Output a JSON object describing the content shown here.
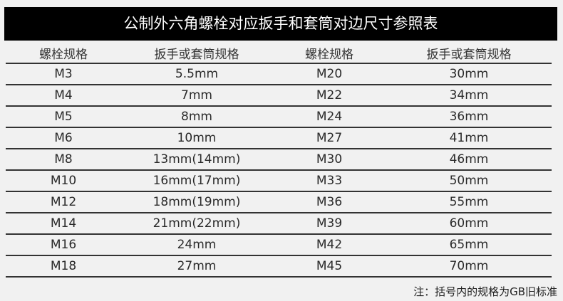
{
  "title": "公制外六角螺栓对应扳手和套筒对边尺寸参照表",
  "headers": [
    "螺栓规格",
    "扳手或套筒规格",
    "螺栓规格",
    "扳手或套筒规格"
  ],
  "rows": [
    [
      "M3",
      "5.5mm",
      "M20",
      "30mm"
    ],
    [
      "M4",
      "7mm",
      "M22",
      "34mm"
    ],
    [
      "M5",
      "8mm",
      "M24",
      "36mm"
    ],
    [
      "M6",
      "10mm",
      "M27",
      "41mm"
    ],
    [
      "M8",
      "13mm(14mm)",
      "M30",
      "46mm"
    ],
    [
      "M10",
      "16mm(17mm)",
      "M33",
      "50mm"
    ],
    [
      "M12",
      "18mm(19mm)",
      "M36",
      "55mm"
    ],
    [
      "M14",
      "21mm(22mm)",
      "M39",
      "60mm"
    ],
    [
      "M16",
      "24mm",
      "M42",
      "65mm"
    ],
    [
      "M18",
      "27mm",
      "M45",
      "70mm"
    ]
  ],
  "note": "注：括号内的规格为GB旧标准"
}
